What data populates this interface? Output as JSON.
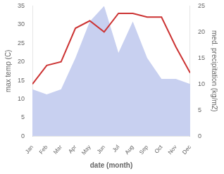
{
  "chart_data": {
    "type": "line",
    "categories": [
      "Jan",
      "Feb",
      "Mar",
      "Apr",
      "May",
      "Jun",
      "Jul",
      "Aug",
      "Sep",
      "Oct",
      "Nov",
      "Dec"
    ],
    "series": [
      {
        "type": "area",
        "color": "#c8d0f0",
        "axis": "y2",
        "values": [
          9,
          8,
          9,
          15,
          22,
          25,
          16,
          22,
          15,
          11,
          11,
          10
        ]
      },
      {
        "type": "line",
        "color": "#cc3333",
        "values": [
          14,
          19,
          20,
          29,
          31,
          28,
          33,
          33,
          32,
          32,
          24,
          17
        ]
      }
    ],
    "xlabel": "date (month)",
    "ylabel": "max temp (C)",
    "y2label": "med. precipitation (kg/m2)",
    "ylim": [
      0,
      35
    ],
    "yticks": [
      0,
      5,
      10,
      15,
      20,
      25,
      30,
      35
    ],
    "y2lim": [
      0,
      25
    ],
    "y2ticks": [
      0,
      5,
      10,
      15,
      20,
      25
    ],
    "grid": false
  }
}
